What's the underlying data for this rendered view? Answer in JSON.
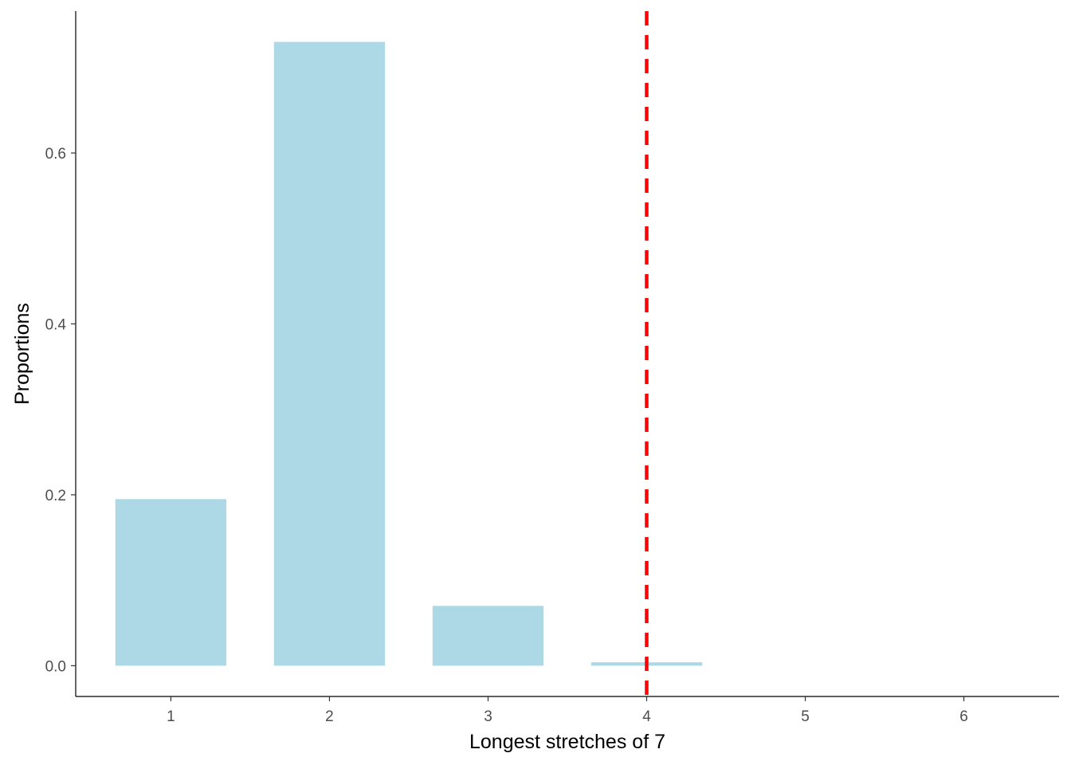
{
  "chart_data": {
    "type": "bar",
    "title": "",
    "xlabel": "Longest stretches of 7",
    "ylabel": "Proportions",
    "categories": [
      "1",
      "2",
      "3",
      "4",
      "5",
      "6"
    ],
    "values": [
      0.195,
      0.73,
      0.07,
      0.004,
      0,
      0
    ],
    "xlim": [
      0.4,
      6.6
    ],
    "ylim": [
      -0.036,
      0.766
    ],
    "yticks": [
      0.0,
      0.2,
      0.4,
      0.6
    ],
    "ytick_labels": [
      "0.0",
      "0.2",
      "0.4",
      "0.6"
    ],
    "bar_width": 0.7,
    "reference_line": {
      "x": 4,
      "style": "dashed",
      "color": "#ff0000"
    },
    "bar_color": "#add8e6",
    "grid": false,
    "legend": "none"
  }
}
